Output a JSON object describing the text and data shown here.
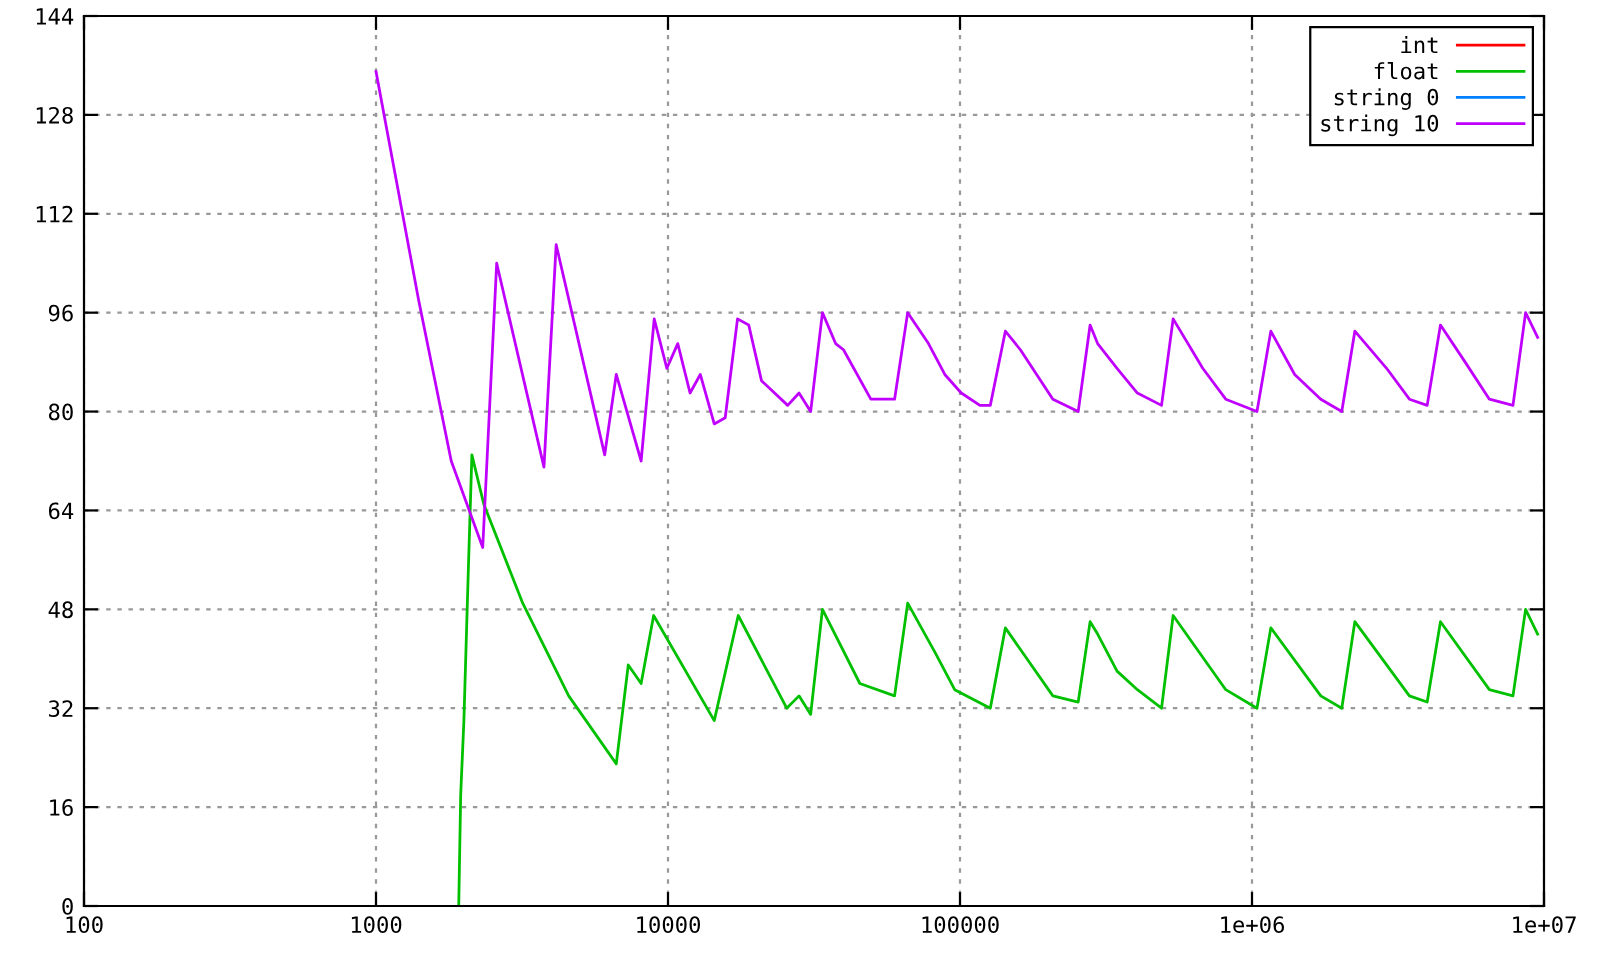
{
  "chart_data": {
    "type": "line",
    "log": "x",
    "grid": true,
    "legend": "top right",
    "marker": "none",
    "line_style": "solid",
    "xlim": [
      100,
      10000000
    ],
    "xticks": [
      100,
      1000,
      10000,
      100000,
      {
        "value": 1000000,
        "label": "1e+06"
      },
      {
        "value": 10000000,
        "label": "1e+07"
      }
    ],
    "ylim": [
      0,
      144
    ],
    "yticks": [
      0,
      16,
      32,
      48,
      64,
      80,
      96,
      112,
      128,
      144
    ],
    "series": [
      {
        "name": "int",
        "color": "#ff0000"
      },
      {
        "name": "float",
        "color": "#00c000",
        "x": [
          1920,
          1950,
          2000,
          2070,
          2130,
          2340,
          3180,
          4570,
          6650,
          7310,
          8090,
          8930,
          14400,
          17400,
          25500,
          28100,
          30800,
          33800,
          45400,
          59700,
          66200,
          82200,
          95900,
          127000,
          143000,
          208000,
          254000,
          279000,
          296000,
          345000,
          405000,
          490000,
          537000,
          813000,
          1040000,
          1160000,
          1720000,
          2030000,
          2250000,
          3460000,
          3980000,
          4420000,
          6500000,
          7830000,
          8650000,
          9510000
        ],
        "values": [
          0,
          18,
          30,
          54,
          73,
          65,
          49,
          34,
          23,
          39,
          36,
          47,
          30,
          47,
          32,
          34,
          31,
          48,
          36,
          34,
          49,
          41,
          35,
          32,
          45,
          34,
          33,
          46,
          44,
          38,
          35,
          32,
          47,
          35,
          32,
          45,
          34,
          32,
          46,
          34,
          33,
          46,
          35,
          34,
          48,
          44
        ]
      },
      {
        "name": "string 0",
        "color": "#0080ff"
      },
      {
        "name": "string 10",
        "color": "#c000ff",
        "x": [
          1000,
          1400,
          1810,
          2320,
          2590,
          3760,
          4140,
          6070,
          6650,
          8090,
          8970,
          9910,
          10800,
          11900,
          12900,
          14400,
          15700,
          17300,
          18900,
          20900,
          25700,
          28100,
          30800,
          33800,
          37500,
          39900,
          49500,
          59700,
          66200,
          78000,
          88700,
          101000,
          117000,
          127000,
          143000,
          161000,
          208000,
          254000,
          279000,
          296000,
          345000,
          405000,
          490000,
          537000,
          678000,
          813000,
          1040000,
          1160000,
          1400000,
          1720000,
          2030000,
          2250000,
          2890000,
          3460000,
          3980000,
          4420000,
          5370000,
          6500000,
          7830000,
          8650000,
          9510000
        ],
        "values": [
          135,
          98,
          72,
          58,
          104,
          71,
          107,
          73,
          86,
          72,
          95,
          87,
          91,
          83,
          86,
          78,
          79,
          95,
          94,
          85,
          81,
          83,
          80,
          96,
          91,
          90,
          82,
          82,
          96,
          91,
          86,
          83,
          81,
          81,
          93,
          90,
          82,
          80,
          94,
          91,
          87,
          83,
          81,
          95,
          87,
          82,
          80,
          93,
          86,
          82,
          80,
          93,
          87,
          82,
          81,
          94,
          88,
          82,
          81,
          96,
          92
        ]
      }
    ]
  }
}
